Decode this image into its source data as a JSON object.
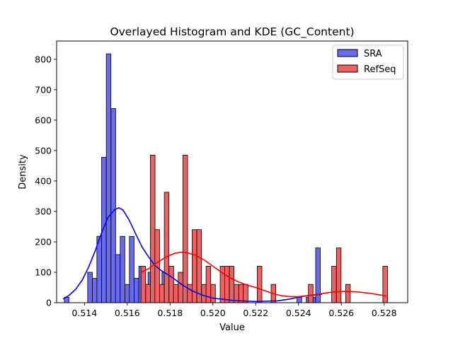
{
  "chart_data": {
    "type": "bar",
    "title": "Overlayed Histogram and KDE (GC_Content)",
    "xlabel": "Value",
    "ylabel": "Density",
    "xlim": [
      0.5127,
      0.5291
    ],
    "ylim": [
      0,
      860
    ],
    "xticks": [
      "0.514",
      "0.516",
      "0.518",
      "0.520",
      "0.522",
      "0.524",
      "0.526",
      "0.528"
    ],
    "xtick_values": [
      0.514,
      0.516,
      0.518,
      0.52,
      0.522,
      0.524,
      0.526,
      0.528
    ],
    "yticks": [
      "0",
      "100",
      "200",
      "300",
      "400",
      "500",
      "600",
      "700",
      "800"
    ],
    "ytick_values": [
      0,
      100,
      200,
      300,
      400,
      500,
      600,
      700,
      800
    ],
    "grid": false,
    "legend_position": "top-right",
    "series": [
      {
        "name": "SRA",
        "kind": "histogram",
        "color": "#0000ff",
        "fill": "#6a6af0",
        "bin_width": 0.000217,
        "bins": [
          {
            "x0": 0.51306,
            "h": 18
          },
          {
            "x0": 0.51415,
            "h": 100
          },
          {
            "x0": 0.51437,
            "h": 80
          },
          {
            "x0": 0.51458,
            "h": 218
          },
          {
            "x0": 0.5148,
            "h": 478
          },
          {
            "x0": 0.51502,
            "h": 818
          },
          {
            "x0": 0.51524,
            "h": 638
          },
          {
            "x0": 0.51545,
            "h": 158
          },
          {
            "x0": 0.51567,
            "h": 218
          },
          {
            "x0": 0.51589,
            "h": 60
          },
          {
            "x0": 0.5161,
            "h": 218
          },
          {
            "x0": 0.51632,
            "h": 80
          },
          {
            "x0": 0.51654,
            "h": 120
          },
          {
            "x0": 0.51676,
            "h": 60
          },
          {
            "x0": 0.51697,
            "h": 100
          },
          {
            "x0": 0.51719,
            "h": 100
          },
          {
            "x0": 0.51741,
            "h": 40
          },
          {
            "x0": 0.51762,
            "h": 100
          },
          {
            "x0": 0.51784,
            "h": 80
          },
          {
            "x0": 0.51806,
            "h": 20
          },
          {
            "x0": 0.52393,
            "h": 18
          },
          {
            "x0": 0.52436,
            "h": 18
          },
          {
            "x0": 0.52458,
            "h": 18
          },
          {
            "x0": 0.5248,
            "h": 180
          }
        ],
        "kde": [
          [
            0.513,
            12
          ],
          [
            0.5133,
            25
          ],
          [
            0.5136,
            45
          ],
          [
            0.5139,
            75
          ],
          [
            0.5142,
            118
          ],
          [
            0.5145,
            170
          ],
          [
            0.5148,
            230
          ],
          [
            0.5151,
            280
          ],
          [
            0.5154,
            305
          ],
          [
            0.5156,
            312
          ],
          [
            0.5158,
            305
          ],
          [
            0.5161,
            270
          ],
          [
            0.5164,
            225
          ],
          [
            0.5167,
            182
          ],
          [
            0.517,
            150
          ],
          [
            0.5173,
            122
          ],
          [
            0.5176,
            105
          ],
          [
            0.5179,
            92
          ],
          [
            0.5182,
            78
          ],
          [
            0.5185,
            62
          ],
          [
            0.519,
            40
          ],
          [
            0.5195,
            25
          ],
          [
            0.52,
            15
          ],
          [
            0.521,
            7
          ],
          [
            0.522,
            4
          ],
          [
            0.523,
            6
          ],
          [
            0.5236,
            12
          ],
          [
            0.524,
            18
          ],
          [
            0.5243,
            22
          ],
          [
            0.5247,
            25
          ],
          [
            0.5251,
            28
          ]
        ]
      },
      {
        "name": "RefSeq",
        "kind": "histogram",
        "color": "#ff0000",
        "fill": "#f06060",
        "bin_width": 0.000217,
        "bins": [
          {
            "x0": 0.51664,
            "h": 120
          },
          {
            "x0": 0.51686,
            "h": 60
          },
          {
            "x0": 0.51708,
            "h": 485
          },
          {
            "x0": 0.51729,
            "h": 240
          },
          {
            "x0": 0.51751,
            "h": 60
          },
          {
            "x0": 0.51773,
            "h": 363
          },
          {
            "x0": 0.51795,
            "h": 120
          },
          {
            "x0": 0.51816,
            "h": 60
          },
          {
            "x0": 0.51838,
            "h": 100
          },
          {
            "x0": 0.5186,
            "h": 485
          },
          {
            "x0": 0.51881,
            "h": 60
          },
          {
            "x0": 0.51903,
            "h": 240
          },
          {
            "x0": 0.51925,
            "h": 240
          },
          {
            "x0": 0.51947,
            "h": 60
          },
          {
            "x0": 0.51968,
            "h": 120
          },
          {
            "x0": 0.5199,
            "h": 60
          },
          {
            "x0": 0.52034,
            "h": 120
          },
          {
            "x0": 0.52055,
            "h": 120
          },
          {
            "x0": 0.52077,
            "h": 120
          },
          {
            "x0": 0.52099,
            "h": 60
          },
          {
            "x0": 0.52121,
            "h": 60
          },
          {
            "x0": 0.52142,
            "h": 60
          },
          {
            "x0": 0.52207,
            "h": 120
          },
          {
            "x0": 0.52272,
            "h": 60
          },
          {
            "x0": 0.52446,
            "h": 60
          },
          {
            "x0": 0.52555,
            "h": 120
          },
          {
            "x0": 0.52577,
            "h": 180
          },
          {
            "x0": 0.5262,
            "h": 60
          },
          {
            "x0": 0.52794,
            "h": 120
          }
        ],
        "kde": [
          [
            0.5166,
            98
          ],
          [
            0.517,
            112
          ],
          [
            0.5174,
            132
          ],
          [
            0.5178,
            150
          ],
          [
            0.5182,
            162
          ],
          [
            0.5185,
            166
          ],
          [
            0.5188,
            164
          ],
          [
            0.5192,
            156
          ],
          [
            0.5196,
            140
          ],
          [
            0.52,
            120
          ],
          [
            0.5204,
            100
          ],
          [
            0.5208,
            82
          ],
          [
            0.5212,
            68
          ],
          [
            0.5216,
            58
          ],
          [
            0.522,
            50
          ],
          [
            0.5224,
            40
          ],
          [
            0.5228,
            30
          ],
          [
            0.5232,
            23
          ],
          [
            0.5236,
            20
          ],
          [
            0.524,
            20
          ],
          [
            0.5244,
            23
          ],
          [
            0.5248,
            27
          ],
          [
            0.5252,
            31
          ],
          [
            0.5256,
            35
          ],
          [
            0.526,
            37
          ],
          [
            0.5264,
            37
          ],
          [
            0.5268,
            35
          ],
          [
            0.5272,
            32
          ],
          [
            0.5276,
            28
          ],
          [
            0.5281,
            22
          ]
        ]
      }
    ]
  }
}
